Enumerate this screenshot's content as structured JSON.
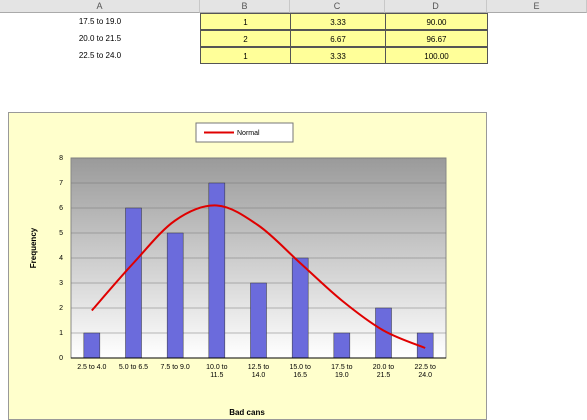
{
  "sheet": {
    "columns": [
      "A",
      "B",
      "C",
      "D",
      "E"
    ],
    "rows": [
      [
        "17.5 to 19.0",
        "1",
        "3.33",
        "90.00"
      ],
      [
        "20.0 to 21.5",
        "2",
        "6.67",
        "96.67"
      ],
      [
        "22.5 to 24.0",
        "1",
        "3.33",
        "100.00"
      ]
    ]
  },
  "chart_data": {
    "type": "bar",
    "categories": [
      "2.5 to 4.0",
      "5.0 to 6.5",
      "7.5 to 9.0",
      "10.0 to 11.5",
      "12.5 to 14.0",
      "15.0 to 16.5",
      "17.5 to 19.0",
      "20.0 to 21.5",
      "22.5 to 24.0"
    ],
    "series": [
      {
        "type": "bar",
        "color": "#6b6bdc",
        "values": [
          1,
          6,
          5,
          7,
          3,
          4,
          1,
          2,
          1
        ]
      },
      {
        "type": "line",
        "name": "Normal",
        "color": "#e00000",
        "values": [
          1.9,
          3.8,
          5.5,
          6.1,
          5.3,
          3.8,
          2.3,
          1.1,
          0.4
        ]
      }
    ],
    "ylim": [
      0,
      8
    ],
    "yticks": [
      0,
      1,
      2,
      3,
      4,
      5,
      6,
      7,
      8
    ],
    "x_label": "Bad cans",
    "y_label": "Frequency",
    "grid": true
  }
}
